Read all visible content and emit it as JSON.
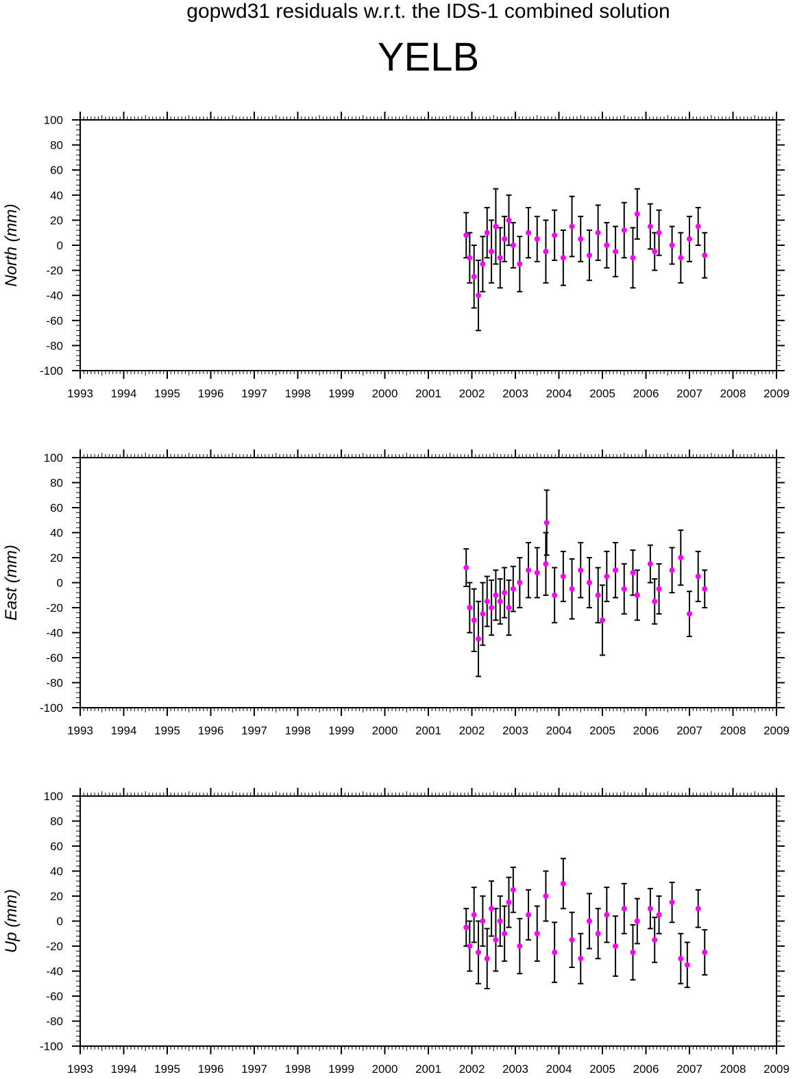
{
  "title": "gopwd31 residuals w.r.t. the IDS-1 combined solution",
  "station": "YELB",
  "colors": {
    "point": "#ff00ff",
    "errorbar": "#000000",
    "axis": "#000000"
  },
  "chart_data": [
    {
      "type": "scatter",
      "ylabel": "North (mm)",
      "xlim": [
        1993,
        2009
      ],
      "ylim": [
        -100,
        100
      ],
      "xticks": [
        "1993",
        "1994",
        "1995",
        "1996",
        "1997",
        "1998",
        "1999",
        "2000",
        "2001",
        "2002",
        "2003",
        "2004",
        "2005",
        "2006",
        "2007",
        "2008",
        "2009"
      ],
      "yticks": [
        "-100",
        "-80",
        "-60",
        "-40",
        "-20",
        "0",
        "20",
        "40",
        "60",
        "80",
        "100"
      ],
      "series": [
        {
          "x": [
            2001.87,
            2001.95,
            2002.05,
            2002.15,
            2002.25,
            2002.35,
            2002.45,
            2002.55,
            2002.65,
            2002.75,
            2002.85,
            2002.95,
            2003.1,
            2003.3,
            2003.5,
            2003.7,
            2003.9,
            2004.1,
            2004.3,
            2004.5,
            2004.7,
            2004.9,
            2005.1,
            2005.3,
            2005.5,
            2005.7,
            2005.8,
            2006.1,
            2006.2,
            2006.3,
            2006.6,
            2006.8,
            2007.0,
            2007.2,
            2007.35
          ],
          "y": [
            8,
            -10,
            -25,
            -40,
            -15,
            10,
            -5,
            15,
            -10,
            5,
            20,
            0,
            -15,
            10,
            5,
            -5,
            8,
            -10,
            15,
            5,
            -8,
            10,
            0,
            -5,
            12,
            -10,
            25,
            15,
            -5,
            10,
            0,
            -10,
            5,
            15,
            -8
          ],
          "err": [
            18,
            20,
            25,
            28,
            22,
            20,
            25,
            30,
            24,
            18,
            20,
            18,
            22,
            20,
            18,
            25,
            20,
            22,
            24,
            18,
            20,
            22,
            18,
            20,
            22,
            24,
            20,
            18,
            15,
            18,
            15,
            20,
            18,
            15,
            18
          ]
        }
      ]
    },
    {
      "type": "scatter",
      "ylabel": "East (mm)",
      "xlim": [
        1993,
        2009
      ],
      "ylim": [
        -100,
        100
      ],
      "xticks": [
        "1993",
        "1994",
        "1995",
        "1996",
        "1997",
        "1998",
        "1999",
        "2000",
        "2001",
        "2002",
        "2003",
        "2004",
        "2005",
        "2006",
        "2007",
        "2008",
        "2009"
      ],
      "yticks": [
        "-100",
        "-80",
        "-60",
        "-40",
        "-20",
        "0",
        "20",
        "40",
        "60",
        "80",
        "100"
      ],
      "series": [
        {
          "x": [
            2001.87,
            2001.95,
            2002.05,
            2002.15,
            2002.25,
            2002.35,
            2002.45,
            2002.55,
            2002.65,
            2002.75,
            2002.85,
            2002.95,
            2003.1,
            2003.3,
            2003.5,
            2003.7,
            2003.72,
            2003.9,
            2004.1,
            2004.3,
            2004.5,
            2004.7,
            2004.9,
            2005.0,
            2005.1,
            2005.3,
            2005.5,
            2005.7,
            2005.8,
            2006.1,
            2006.2,
            2006.3,
            2006.6,
            2006.8,
            2007.0,
            2007.2,
            2007.35
          ],
          "y": [
            12,
            -20,
            -30,
            -45,
            -25,
            -15,
            -20,
            -10,
            -15,
            -8,
            -20,
            -5,
            0,
            10,
            8,
            15,
            48,
            -10,
            5,
            -5,
            10,
            0,
            -10,
            -30,
            5,
            10,
            -5,
            8,
            -10,
            15,
            -15,
            -5,
            10,
            20,
            -25,
            5,
            -5
          ],
          "err": [
            15,
            20,
            25,
            30,
            25,
            20,
            22,
            20,
            18,
            20,
            22,
            18,
            20,
            22,
            20,
            25,
            26,
            22,
            20,
            24,
            22,
            20,
            22,
            28,
            20,
            22,
            20,
            18,
            20,
            15,
            18,
            20,
            18,
            22,
            18,
            20,
            15
          ]
        }
      ]
    },
    {
      "type": "scatter",
      "ylabel": "Up (mm)",
      "xlim": [
        1993,
        2009
      ],
      "ylim": [
        -100,
        100
      ],
      "xticks": [
        "1993",
        "1994",
        "1995",
        "1996",
        "1997",
        "1998",
        "1999",
        "2000",
        "2001",
        "2002",
        "2003",
        "2004",
        "2005",
        "2006",
        "2007",
        "2008",
        "2009"
      ],
      "yticks": [
        "-100",
        "-80",
        "-60",
        "-40",
        "-20",
        "0",
        "20",
        "40",
        "60",
        "80",
        "100"
      ],
      "series": [
        {
          "x": [
            2001.87,
            2001.95,
            2002.05,
            2002.15,
            2002.25,
            2002.35,
            2002.45,
            2002.55,
            2002.65,
            2002.75,
            2002.85,
            2002.95,
            2003.1,
            2003.3,
            2003.5,
            2003.7,
            2003.9,
            2004.1,
            2004.3,
            2004.5,
            2004.7,
            2004.9,
            2005.1,
            2005.3,
            2005.5,
            2005.7,
            2005.8,
            2006.1,
            2006.2,
            2006.3,
            2006.6,
            2006.8,
            2006.95,
            2007.2,
            2007.35
          ],
          "y": [
            -5,
            -20,
            5,
            -25,
            0,
            -30,
            10,
            -15,
            0,
            -10,
            15,
            25,
            -20,
            5,
            -10,
            20,
            -25,
            30,
            -15,
            -30,
            0,
            -10,
            5,
            -20,
            10,
            -25,
            0,
            10,
            -15,
            5,
            15,
            -30,
            -35,
            10,
            -25
          ],
          "err": [
            15,
            20,
            22,
            25,
            20,
            24,
            22,
            25,
            20,
            22,
            20,
            18,
            22,
            20,
            22,
            20,
            24,
            20,
            22,
            20,
            22,
            20,
            22,
            24,
            20,
            22,
            18,
            16,
            18,
            15,
            16,
            20,
            18,
            15,
            18
          ]
        }
      ]
    }
  ]
}
